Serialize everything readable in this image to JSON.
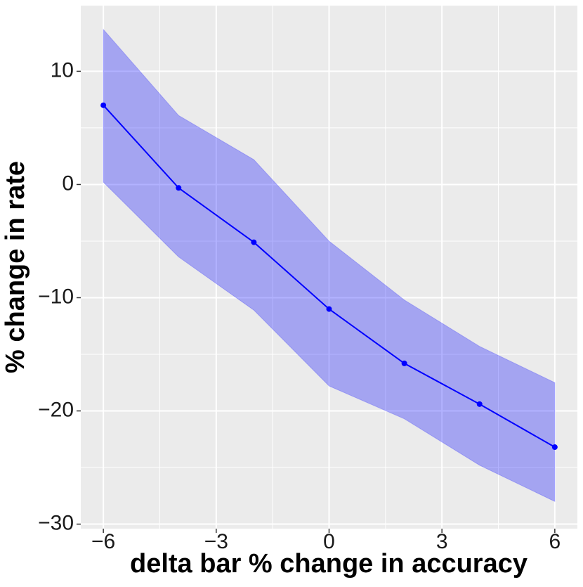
{
  "chart_data": {
    "type": "line",
    "x_label": "delta bar % change in accuracy",
    "y_label": "% change in rate",
    "x": [
      -6,
      -4,
      -2,
      0,
      2,
      4,
      6
    ],
    "series": [
      {
        "values": [
          7.0,
          -0.3,
          -5.1,
          -11.0,
          -15.8,
          -19.4,
          -23.2
        ],
        "lower": [
          0.2,
          -6.4,
          -11.1,
          -17.8,
          -20.7,
          -24.8,
          -28.0
        ],
        "upper": [
          13.7,
          6.1,
          2.2,
          -5.0,
          -10.2,
          -14.3,
          -17.5
        ],
        "color": "#0000ff",
        "band_color": "#0000ff"
      }
    ],
    "xlim": [
      -6.6,
      6.6
    ],
    "ylim": [
      -30.4,
      15.8
    ],
    "xticks": [
      {
        "value": -6,
        "label": "−6"
      },
      {
        "value": -3,
        "label": "−3"
      },
      0,
      3,
      6
    ],
    "yticks": [
      {
        "value": -30,
        "label": "−30"
      },
      {
        "value": -20,
        "label": "−20"
      },
      {
        "value": -10,
        "label": "−10"
      },
      0,
      10
    ],
    "x_minor_ticks": [
      -4.5,
      -1.5,
      1.5,
      4.5
    ],
    "y_minor_ticks": [
      -25,
      -15,
      -5,
      5
    ],
    "grid": true
  }
}
